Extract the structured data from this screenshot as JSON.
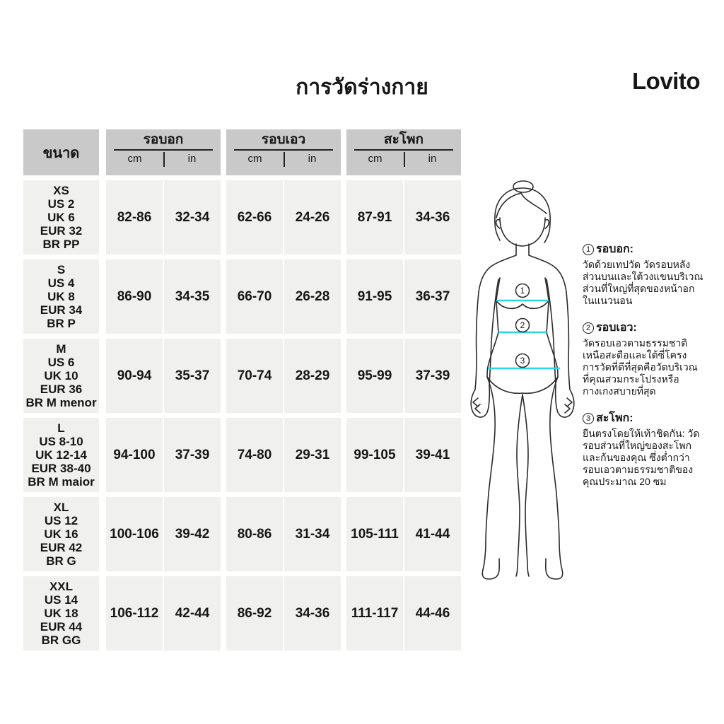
{
  "title": "การวัดร่างกาย",
  "brand": "Lovito",
  "colors": {
    "header_bg": "#c9c9c9",
    "cell_bg": "#f0f0ef",
    "measure_line": "#2ed4e6"
  },
  "table": {
    "size_header": "ขนาด",
    "groups": [
      {
        "label": "รอบอก",
        "units": [
          "cm",
          "in"
        ]
      },
      {
        "label": "รอบเอว",
        "units": [
          "cm",
          "in"
        ]
      },
      {
        "label": "สะโพก",
        "units": [
          "cm",
          "in"
        ]
      }
    ],
    "rows": [
      {
        "size": [
          "XS",
          "US 2",
          "UK 6",
          "EUR 32",
          "BR PP"
        ],
        "values": [
          "82-86",
          "32-34",
          "62-66",
          "24-26",
          "87-91",
          "34-36"
        ]
      },
      {
        "size": [
          "S",
          "US 4",
          "UK 8",
          "EUR 34",
          "BR P"
        ],
        "values": [
          "86-90",
          "34-35",
          "66-70",
          "26-28",
          "91-95",
          "36-37"
        ]
      },
      {
        "size": [
          "M",
          "US 6",
          "UK 10",
          "EUR 36",
          "BR M menor"
        ],
        "values": [
          "90-94",
          "35-37",
          "70-74",
          "28-29",
          "95-99",
          "37-39"
        ]
      },
      {
        "size": [
          "L",
          "US 8-10",
          "UK 12-14",
          "EUR 38-40",
          "BR M maior"
        ],
        "values": [
          "94-100",
          "37-39",
          "74-80",
          "29-31",
          "99-105",
          "39-41"
        ]
      },
      {
        "size": [
          "XL",
          "US 12",
          "UK 16",
          "EUR 42",
          "BR G"
        ],
        "values": [
          "100-106",
          "39-42",
          "80-86",
          "31-34",
          "105-111",
          "41-44"
        ]
      },
      {
        "size": [
          "XXL",
          "US 14",
          "UK 18",
          "EUR 44",
          "BR GG"
        ],
        "values": [
          "106-112",
          "42-44",
          "86-92",
          "34-36",
          "111-117",
          "44-46"
        ]
      }
    ]
  },
  "figure": {
    "markers": [
      "1",
      "2",
      "3"
    ]
  },
  "notes": [
    {
      "num": "1",
      "title": "รอบอก:",
      "body": "วัดด้วยเทปวัด วัดรอบหลัง\nส่วนบนและใต้วงแขนบริเวณ\nส่วนที่ใหญ่ที่สุดของหน้าอก\nในแนวนอน"
    },
    {
      "num": "2",
      "title": "รอบเอว:",
      "body": "วัดรอบเอวตามธรรมชาติ\nเหนือสะดือและใต้ซี่โครง\nการวัดที่ดีที่สุดคือวัดบริเวณ\nที่คุณสวมกระโปรงหรือ\nกางเกงสบายที่สุด"
    },
    {
      "num": "3",
      "title": "สะโพก:",
      "body": "ยืนตรงโดยให้เท้าชิดกัน: วัด\nรอบส่วนที่ใหญ่ของสะโพก\nและก้นของคุณ ซึ่งต่ำกว่า\nรอบเอวตามธรรมชาติของ\nคุณประมาณ 20 ซม"
    }
  ]
}
